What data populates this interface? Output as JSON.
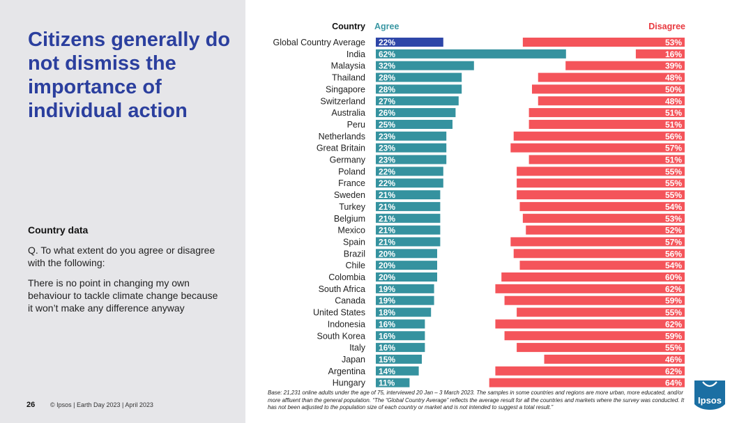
{
  "headline": "Citizens generally do not dismiss the importance of individual action",
  "section_title": "Country data",
  "question": "Q. To what extent do you agree or disagree with the following:",
  "statement": "There is no point in changing my own behaviour to tackle climate change because it won’t make any difference anyway",
  "footer": {
    "page_number": "26",
    "text": "© Ipsos | Earth Day 2023 | April 2023"
  },
  "base_note": "Base: 21,231 online adults under the age of 75, interviewed 20 Jan – 3 March 2023. The samples in some countries and regions are more urban, more educated, and/or more affluent than the general population. “The “Global Country Average” reflects the average result for all the countries and markets where the survey was conducted. It has not been adjusted to the population size of each country or market and is not intended to suggest a total result.”",
  "logo_text": "Ipsos",
  "colors": {
    "agree": "#35929f",
    "agree_highlight": "#2e46a8",
    "disagree": "#f4545a",
    "header_agree": "#3a97a3",
    "header_disagree": "#e8393f",
    "logo": "#1b6fa3"
  },
  "chart_data": {
    "type": "bar",
    "orientation": "horizontal-diverging",
    "headers": {
      "category": "Country",
      "agree": "Agree",
      "disagree": "Disagree"
    },
    "categories": [
      "Global Country Average",
      "India",
      "Malaysia",
      "Thailand",
      "Singapore",
      "Switzerland",
      "Australia",
      "Peru",
      "Netherlands",
      "Great Britain",
      "Germany",
      "Poland",
      "France",
      "Sweden",
      "Turkey",
      "Belgium",
      "Mexico",
      "Spain",
      "Brazil",
      "Chile",
      "Colombia",
      "South Africa",
      "Canada",
      "United States",
      "Indonesia",
      "South Korea",
      "Italy",
      "Japan",
      "Argentina",
      "Hungary"
    ],
    "series": [
      {
        "name": "Agree",
        "values": [
          22,
          62,
          32,
          28,
          28,
          27,
          26,
          25,
          23,
          23,
          23,
          22,
          22,
          21,
          21,
          21,
          21,
          21,
          20,
          20,
          20,
          19,
          19,
          18,
          16,
          16,
          16,
          15,
          14,
          11
        ]
      },
      {
        "name": "Disagree",
        "values": [
          53,
          16,
          39,
          48,
          50,
          48,
          51,
          51,
          56,
          57,
          51,
          55,
          55,
          55,
          54,
          53,
          52,
          57,
          56,
          54,
          60,
          62,
          59,
          55,
          62,
          59,
          55,
          46,
          62,
          64
        ]
      }
    ],
    "value_suffix": "%",
    "highlight_category": "Global Country Average"
  }
}
